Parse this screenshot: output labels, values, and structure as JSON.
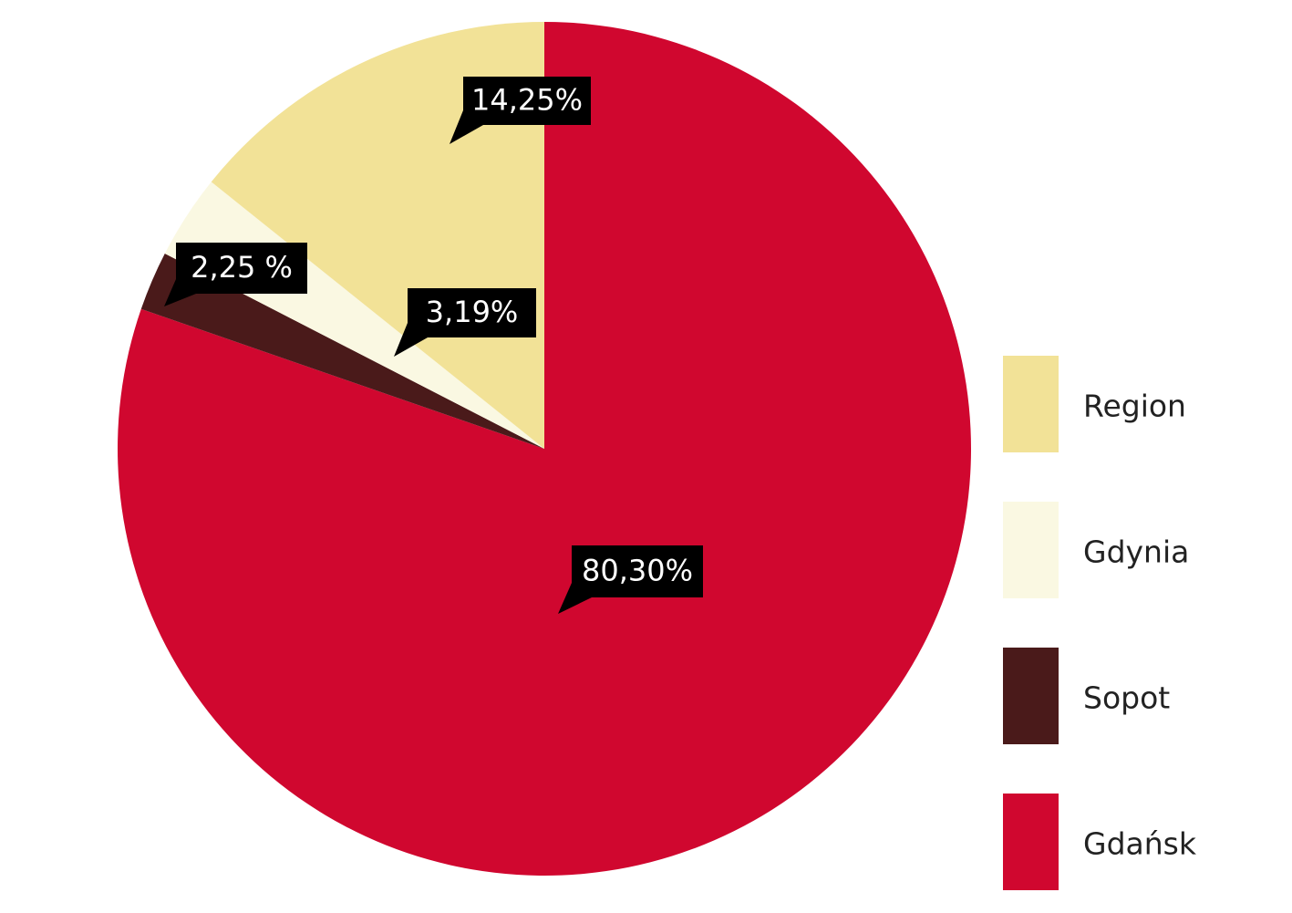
{
  "chart_data": {
    "type": "pie",
    "categories": [
      "Gdańsk",
      "Sopot",
      "Gdynia",
      "Region"
    ],
    "values": [
      80.3,
      2.25,
      3.19,
      14.25
    ],
    "value_labels": [
      "80,30%",
      "2,25 %",
      "3,19%",
      "14,25%"
    ],
    "colors": [
      "#d0072f",
      "#4a1a1a",
      "#faf8e2",
      "#f2e297"
    ],
    "legend": "right"
  }
}
